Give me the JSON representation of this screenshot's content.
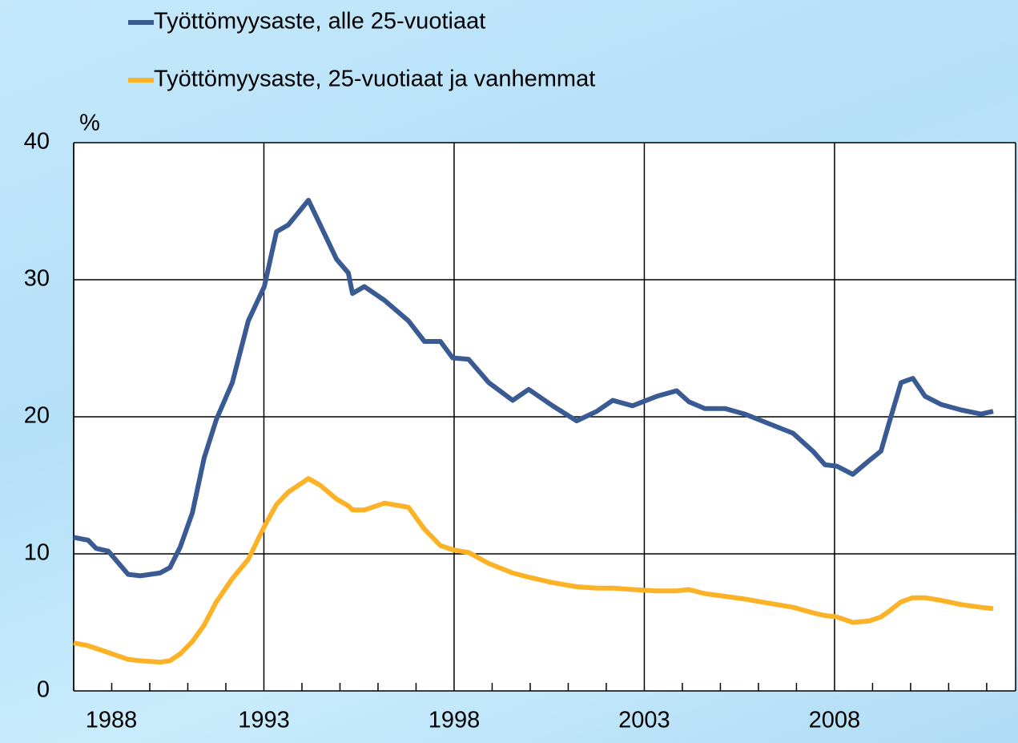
{
  "chart_data": {
    "type": "line",
    "y_label": "%",
    "xlim": [
      1988,
      2012.76
    ],
    "ylim": [
      0,
      40
    ],
    "yticks": [
      0,
      10,
      20,
      30,
      40
    ],
    "xticks": [
      1988,
      1993,
      1998,
      2003,
      2008
    ],
    "xminorticks": [
      1989,
      1990,
      1991,
      1992,
      1994,
      1995,
      1996,
      1997,
      1999,
      2000,
      2001,
      2002,
      2004,
      2005,
      2006,
      2007,
      2009,
      2010,
      2011,
      2012
    ],
    "grid": true,
    "legend": "top",
    "x": [
      1988,
      1988.38,
      1988.59,
      1988.91,
      1989.43,
      1989.75,
      1990.27,
      1990.53,
      1990.8,
      1991.12,
      1991.43,
      1991.75,
      1992.17,
      1992.59,
      1993.01,
      1993.33,
      1993.64,
      1994.17,
      1994.48,
      1994.91,
      1995.22,
      1995.33,
      1995.64,
      1996.17,
      1996.8,
      1997.22,
      1997.64,
      1997.96,
      1998.38,
      1998.91,
      1999.54,
      1999.96,
      2000.59,
      2001.22,
      2001.75,
      2002.17,
      2002.69,
      2003.33,
      2003.85,
      2004.17,
      2004.59,
      2005.12,
      2005.64,
      2006.27,
      2006.91,
      2007.43,
      2007.75,
      2008.06,
      2008.48,
      2008.91,
      2009.22,
      2009.43,
      2009.75,
      2010.06,
      2010.38,
      2010.8,
      2011.33,
      2011.85,
      2012.17
    ],
    "series": [
      {
        "name": "Työttömyysaste, alle 25-vuotiaat",
        "color": "#3a5a94",
        "values": [
          11.2,
          11.0,
          10.4,
          10.2,
          8.5,
          8.4,
          8.6,
          9.0,
          10.5,
          13,
          17,
          19.8,
          22.5,
          27,
          29.5,
          33.5,
          34,
          35.8,
          34,
          31.5,
          30.5,
          29,
          29.5,
          28.5,
          27,
          25.5,
          25.5,
          24.3,
          24.2,
          22.5,
          21.2,
          22,
          20.8,
          19.7,
          20.4,
          21.2,
          20.8,
          21.5,
          21.9,
          21.1,
          20.6,
          20.6,
          20.2,
          19.5,
          18.8,
          17.5,
          16.5,
          16.4,
          15.8,
          16.8,
          17.5,
          19.5,
          22.5,
          22.8,
          21.5,
          20.9,
          20.5,
          20.2,
          20.4
        ]
      },
      {
        "name": "Työttömyysaste, 25-vuotiaat ja vanhemmat",
        "color": "#fbb226",
        "values": [
          3.5,
          3.3,
          3.1,
          2.8,
          2.3,
          2.2,
          2.1,
          2.2,
          2.7,
          3.6,
          4.8,
          6.5,
          8.2,
          9.6,
          12,
          13.6,
          14.5,
          15.5,
          15.0,
          14.0,
          13.5,
          13.2,
          13.2,
          13.7,
          13.4,
          11.8,
          10.6,
          10.3,
          10.1,
          9.3,
          8.6,
          8.3,
          7.9,
          7.6,
          7.5,
          7.5,
          7.4,
          7.3,
          7.3,
          7.4,
          7.1,
          6.9,
          6.7,
          6.4,
          6.1,
          5.7,
          5.5,
          5.4,
          5.0,
          5.1,
          5.4,
          5.8,
          6.5,
          6.8,
          6.8,
          6.6,
          6.3,
          6.1,
          6.0
        ]
      }
    ]
  }
}
